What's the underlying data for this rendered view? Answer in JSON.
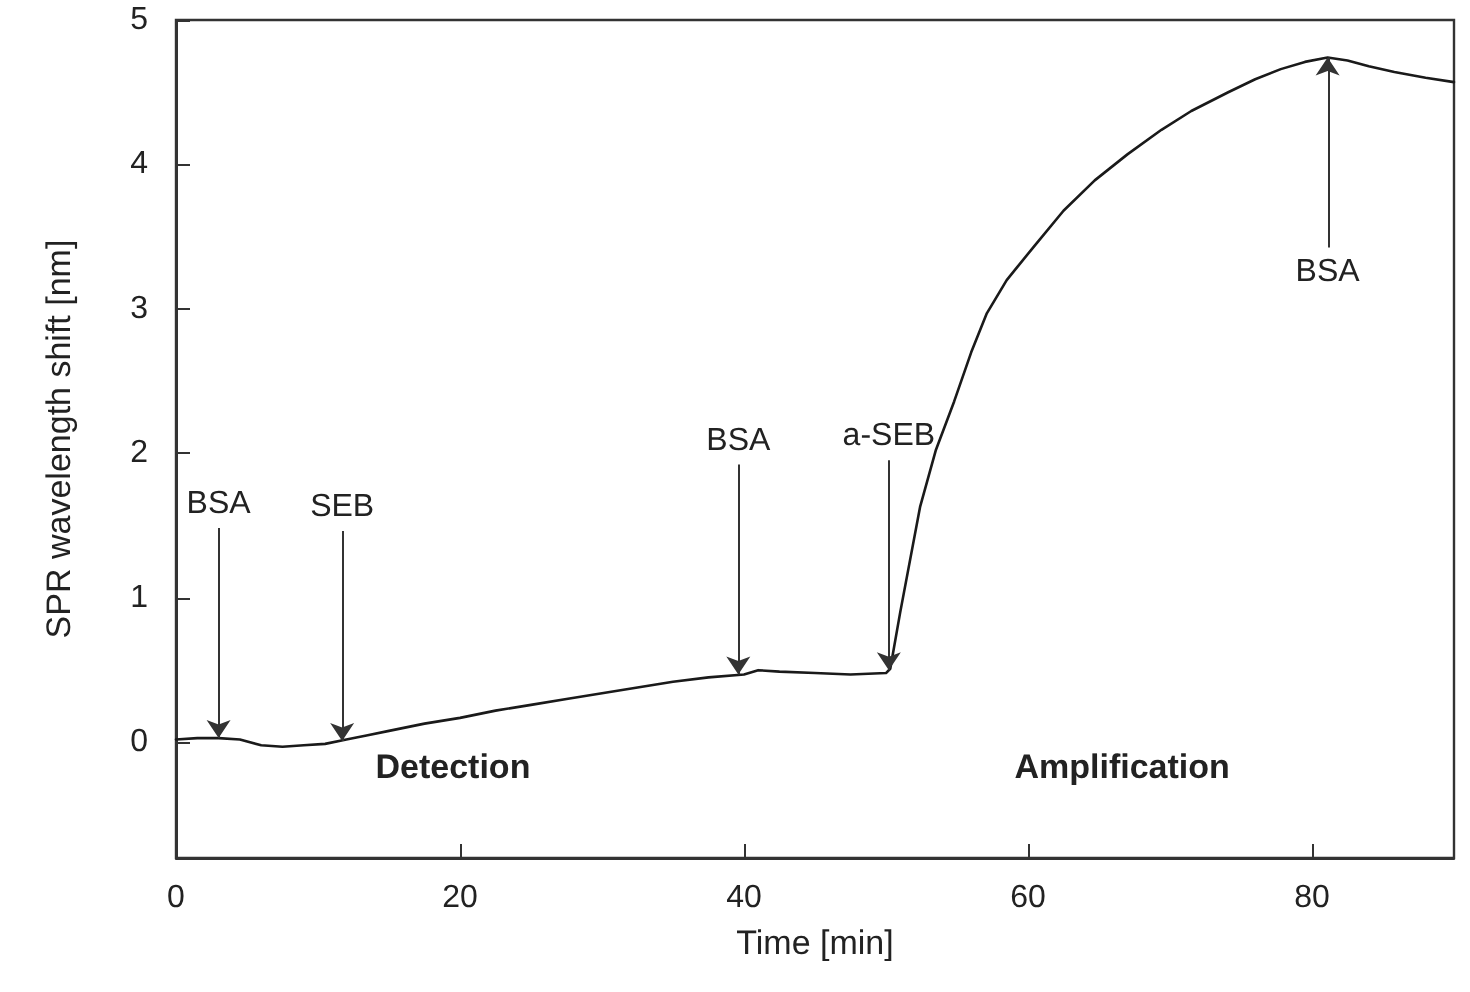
{
  "chart_data": {
    "type": "line",
    "xlabel": "Time [min]",
    "ylabel": "SPR wavelength shift [nm]",
    "x": [
      0,
      1.5,
      3,
      4.5,
      6,
      7.5,
      9,
      10.5,
      12,
      13.5,
      15,
      17.5,
      20,
      22.5,
      25,
      27.5,
      30,
      32.5,
      35,
      37.5,
      40,
      41,
      42.5,
      45,
      47.5,
      50,
      50.3,
      51,
      52.4,
      53.5,
      54.8,
      56,
      57.1,
      58.5,
      60.4,
      62.5,
      64.7,
      67,
      69.4,
      71.5,
      74.1,
      76,
      77.8,
      79.5,
      81.1,
      82.5,
      84,
      85.8,
      88,
      90
    ],
    "values": [
      0.02,
      0.03,
      0.03,
      0.02,
      -0.02,
      -0.03,
      -0.02,
      -0.01,
      0.02,
      0.05,
      0.08,
      0.13,
      0.17,
      0.22,
      0.26,
      0.3,
      0.34,
      0.38,
      0.42,
      0.45,
      0.47,
      0.5,
      0.49,
      0.48,
      0.47,
      0.48,
      0.51,
      0.9,
      1.63,
      2.02,
      2.36,
      2.7,
      2.97,
      3.2,
      3.43,
      3.68,
      3.89,
      4.07,
      4.24,
      4.37,
      4.5,
      4.59,
      4.66,
      4.71,
      4.74,
      4.72,
      4.68,
      4.64,
      4.6,
      4.57
    ],
    "color": "#1a1a1a",
    "marker": "none",
    "line_style": "solid",
    "xlim": [
      0,
      90
    ],
    "xticks": [
      0,
      20,
      40,
      60,
      80
    ],
    "ylim": [
      -0.8,
      5
    ],
    "yticks": [
      0,
      1,
      2,
      3,
      4,
      5
    ],
    "annotations": [
      {
        "text": "BSA",
        "x": 3,
        "y": 0.03
      },
      {
        "text": "SEB",
        "x": 11.7,
        "y": 0.01
      },
      {
        "text": "BSA",
        "x": 39.6,
        "y": 0.47
      },
      {
        "text": "a-SEB",
        "x": 50.2,
        "y": 0.5
      },
      {
        "text": "BSA",
        "x": 81.1,
        "y": 4.74
      },
      "Detection",
      "Amplification"
    ]
  }
}
